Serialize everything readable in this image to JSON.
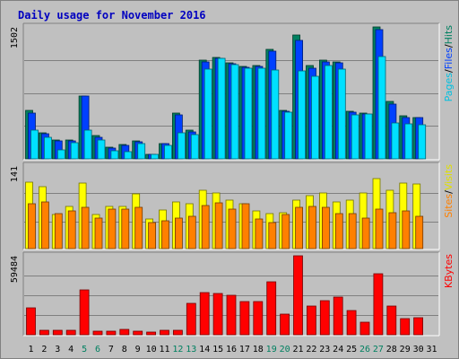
{
  "chart_data": {
    "type": "bar",
    "title": "Daily usage for November 2016",
    "categories": [
      "1",
      "2",
      "3",
      "4",
      "5",
      "6",
      "7",
      "8",
      "9",
      "10",
      "11",
      "12",
      "13",
      "14",
      "15",
      "16",
      "17",
      "18",
      "19",
      "20",
      "21",
      "22",
      "23",
      "24",
      "25",
      "26",
      "27",
      "28",
      "29",
      "30",
      "31"
    ],
    "weekend_days": [
      "5",
      "6",
      "12",
      "13",
      "19",
      "20",
      "26",
      "27"
    ],
    "panels": [
      {
        "name": "hits-panel",
        "ymax_label": "1502",
        "ylim": [
          0,
          1502
        ],
        "ylabel_parts": [
          "Pages",
          "Files",
          "Hits"
        ],
        "ylabel_colors": [
          "#00c0e0",
          "#0040ff",
          "#008060"
        ],
        "series": [
          {
            "name": "Hits",
            "color": "#008060",
            "values": [
              555,
              300,
              215,
              215,
              720,
              265,
              130,
              165,
              200,
              55,
              175,
              525,
              325,
              1120,
              1155,
              1095,
              1050,
              1060,
              1245,
              550,
              1405,
              1060,
              1120,
              1100,
              540,
              525,
              1502,
              650,
              495,
              475,
              0
            ]
          },
          {
            "name": "Files",
            "color": "#0040ff",
            "values": [
              520,
              290,
              205,
              205,
              715,
              245,
              120,
              150,
              190,
              50,
              170,
              500,
              310,
              1105,
              1145,
              1085,
              1045,
              1050,
              1230,
              540,
              1350,
              1035,
              1105,
              1090,
              530,
              510,
              1475,
              625,
              475,
              465,
              0
            ]
          },
          {
            "name": "Pages",
            "color": "#00e0ff",
            "values": [
              330,
              250,
              105,
              185,
              325,
              215,
              90,
              80,
              175,
              50,
              155,
              295,
              280,
              1020,
              1140,
              1070,
              1030,
              1030,
              1015,
              530,
              1000,
              945,
              1060,
              1020,
              500,
              510,
              1160,
              410,
              400,
              390,
              0
            ]
          }
        ]
      },
      {
        "name": "visits-panel",
        "ymax_label": "141",
        "ylim": [
          0,
          141
        ],
        "ylabel_parts": [
          "Sites",
          "Visits"
        ],
        "ylabel_colors": [
          "#ff8000",
          "#e0e000"
        ],
        "series": [
          {
            "name": "Visits",
            "color": "#ffff00",
            "values": [
              114,
              106,
              58,
              72,
              112,
              58,
              72,
              72,
              94,
              50,
              66,
              80,
              76,
              100,
              95,
              82,
              76,
              64,
              60,
              62,
              83,
              90,
              95,
              80,
              82,
              95,
              120,
              100,
              112,
              110,
              0
            ]
          },
          {
            "name": "Sites",
            "color": "#ff8000",
            "values": [
              76,
              80,
              60,
              65,
              70,
              52,
              68,
              68,
              70,
              44,
              48,
              52,
              55,
              73,
              78,
              68,
              76,
              50,
              45,
              58,
              70,
              72,
              70,
              60,
              60,
              52,
              68,
              62,
              65,
              55,
              0
            ]
          }
        ]
      },
      {
        "name": "kbytes-panel",
        "ymax_label": "59484",
        "ylim": [
          0,
          59484
        ],
        "ylabel_parts": [
          "KBytes"
        ],
        "ylabel_colors": [
          "#ff0000"
        ],
        "series": [
          {
            "name": "KBytes",
            "color": "#ff0000",
            "values": [
              20500,
              3600,
              3600,
              3600,
              33700,
              2600,
              2600,
              4200,
              2700,
              2100,
              3600,
              3600,
              23500,
              31800,
              31300,
              29500,
              25000,
              25000,
              39900,
              15500,
              59484,
              21700,
              25700,
              28300,
              18200,
              9400,
              45900,
              21300,
              12400,
              12900,
              0
            ]
          }
        ]
      }
    ]
  }
}
